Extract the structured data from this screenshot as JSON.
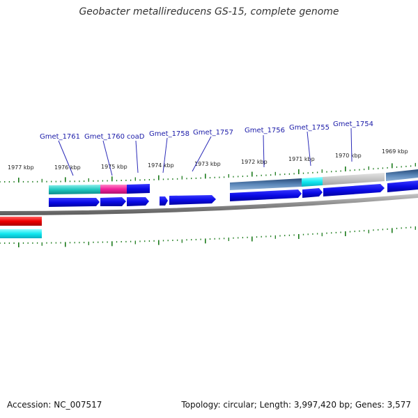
{
  "title": "Geobacter metallireducens GS-15, complete genome",
  "footer": {
    "accession": "Accession: NC_007517",
    "stats": "Topology: circular; Length: 3,997,420 bp; Genes: 3,577"
  },
  "colors": {
    "gene": "#0a0ae6",
    "tick": "#1a7a1a",
    "backbone": "#8a8a8a"
  },
  "gene_labels": [
    "Gmet_1761",
    "Gmet_1760",
    "coaD",
    "Gmet_1758",
    "Gmet_1757",
    "Gmet_1756",
    "Gmet_1755",
    "Gmet_1754"
  ],
  "kbp_labels": [
    "1977 kbp",
    "1976 kbp",
    "1975 kbp",
    "1974 kbp",
    "1973 kbp",
    "1972 kbp",
    "1971 kbp",
    "1970 kbp",
    "1969 kbp"
  ]
}
